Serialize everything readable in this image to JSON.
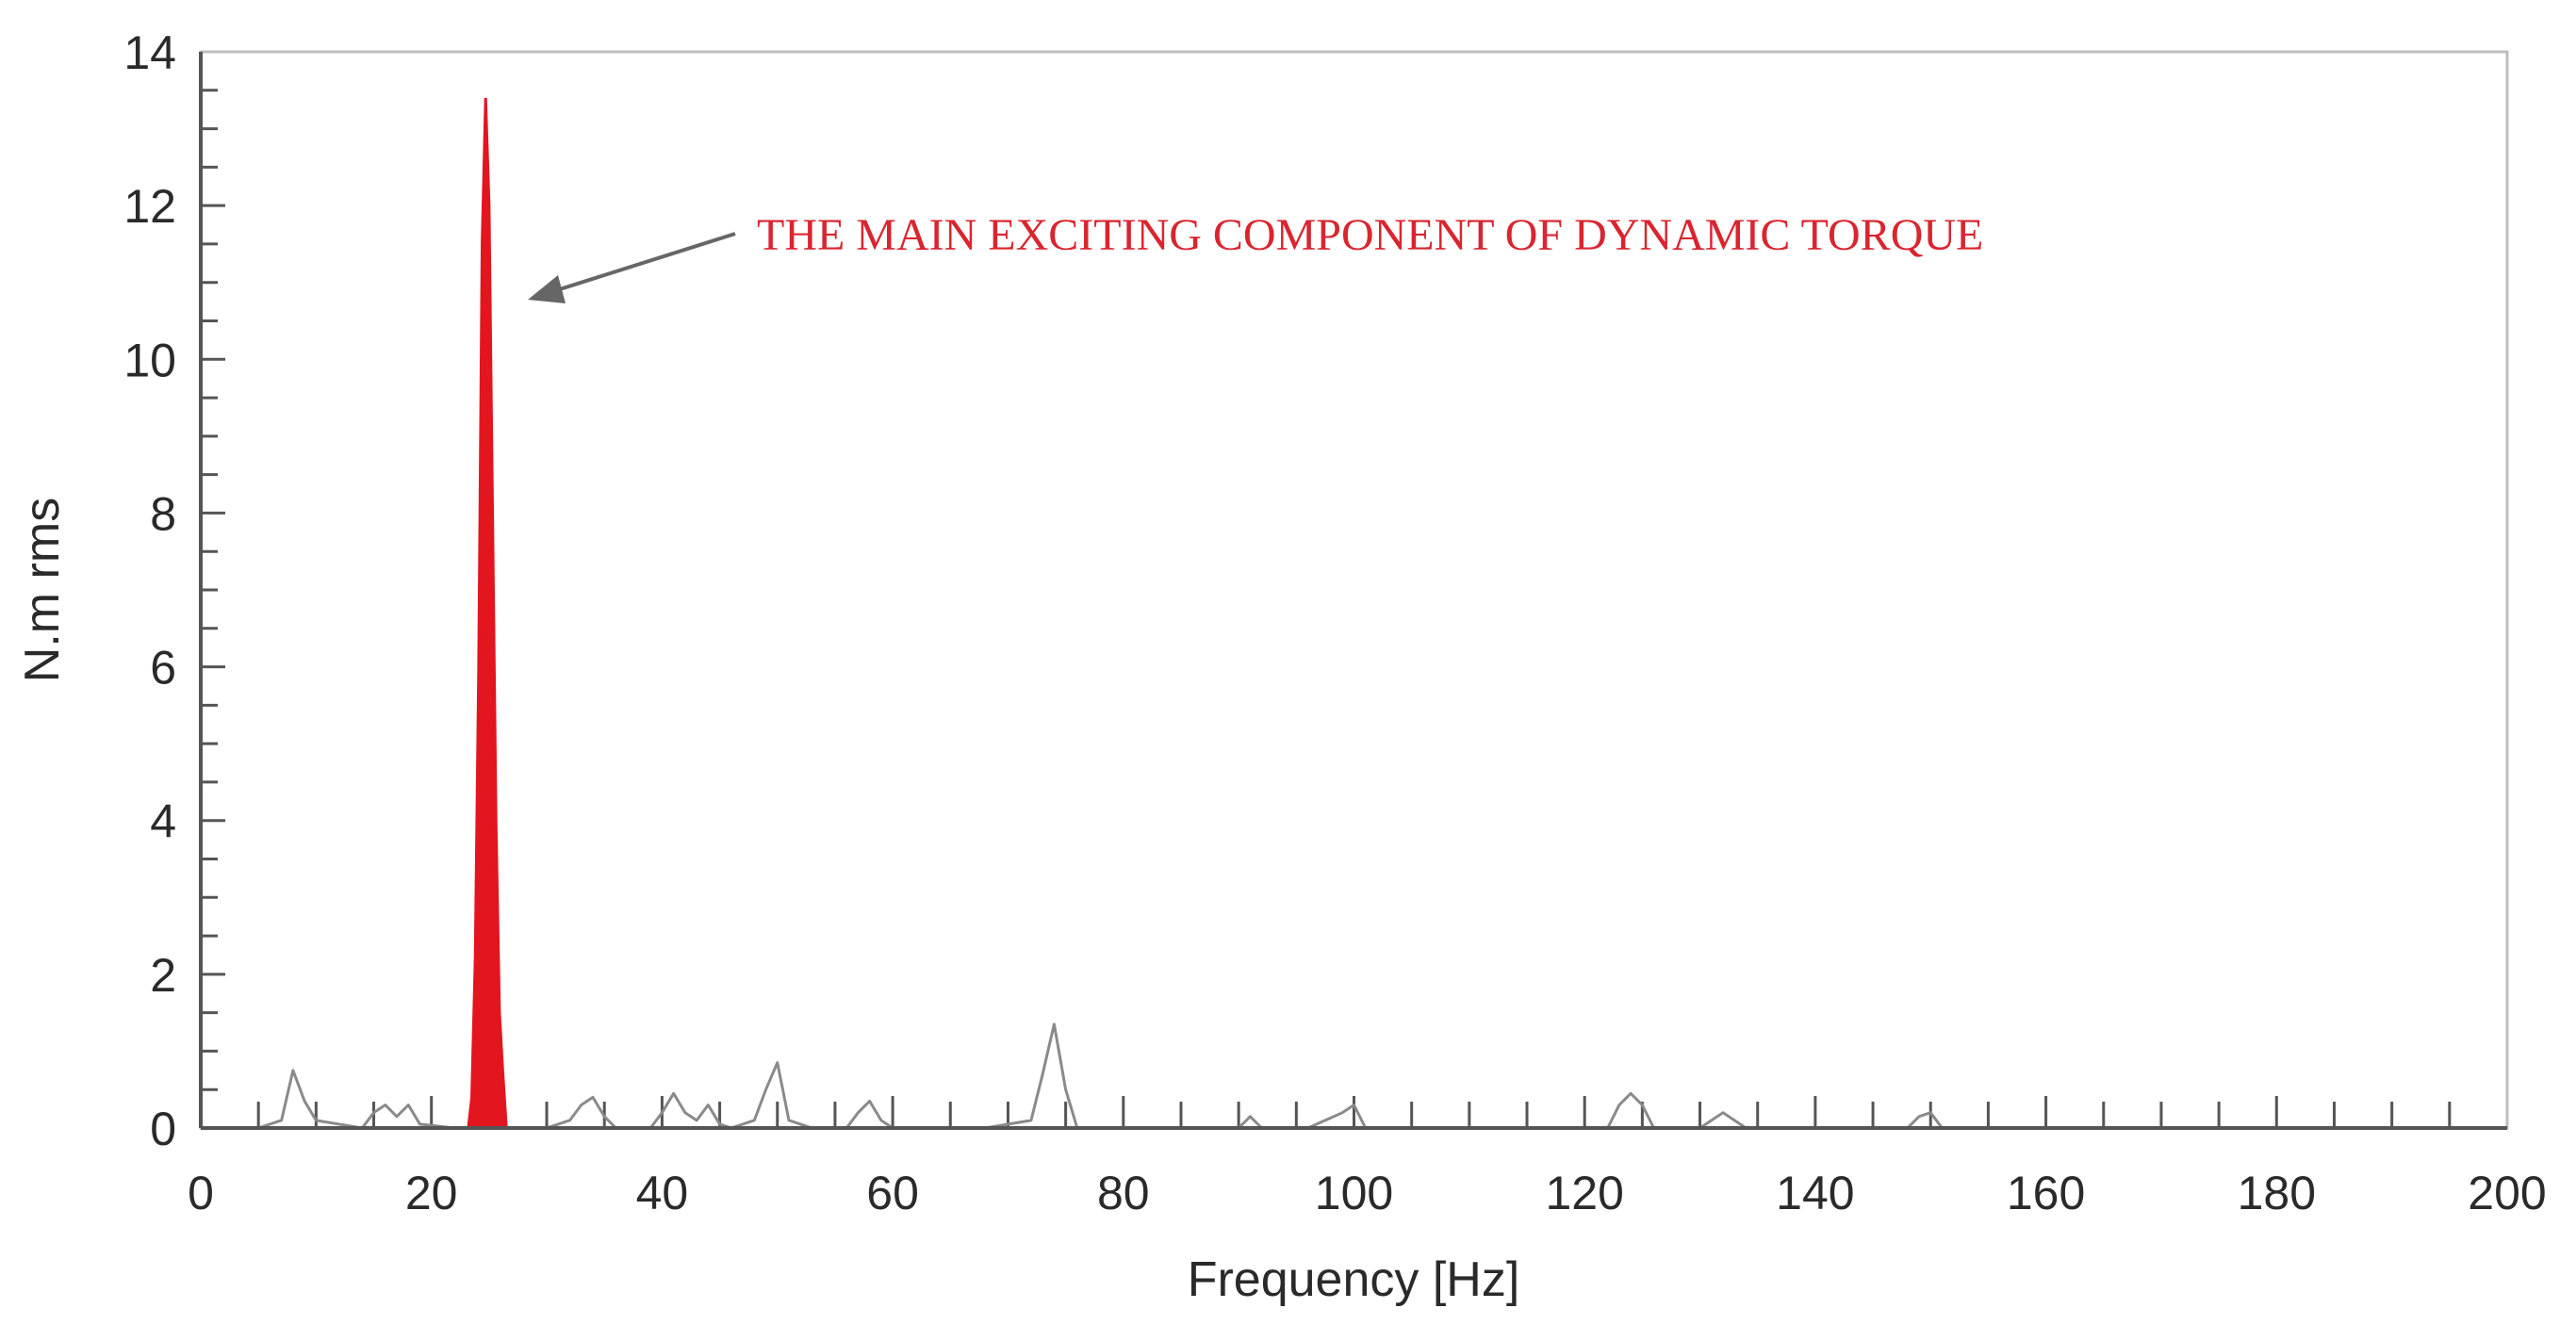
{
  "chart_data": {
    "type": "line",
    "title": "",
    "xlabel": "Frequency [Hz]",
    "ylabel": "N.m rms",
    "xlim": [
      0,
      200
    ],
    "ylim": [
      0,
      14
    ],
    "xticks": [
      "0",
      "20",
      "40",
      "60",
      "80",
      "100",
      "120",
      "140",
      "160",
      "180",
      "200"
    ],
    "yticks": [
      "0",
      "2",
      "4",
      "6",
      "8",
      "10",
      "12",
      "14"
    ],
    "grid": false,
    "annotation": "THE MAIN EXCITING COMPONENT OF DYNAMIC TORQUE",
    "colors": {
      "spectrum": "#8a8a8a",
      "highlight": "#e3151f",
      "annotation": "#d9252f",
      "axis": "#555555",
      "frame": "#bdbdbd"
    },
    "series": [
      {
        "x": [
          0,
          5,
          7,
          8,
          9,
          10,
          14,
          15,
          16,
          17,
          18,
          19,
          22,
          30,
          32,
          33,
          34,
          35,
          36,
          39,
          40,
          41,
          42,
          43,
          44,
          45,
          46,
          48,
          49,
          50,
          51,
          53,
          56,
          57,
          58,
          59,
          60,
          63,
          68,
          72,
          73,
          74,
          75,
          76,
          80,
          86,
          90,
          91,
          92,
          96,
          99,
          100,
          101,
          104,
          110,
          116,
          122,
          123,
          124,
          125,
          126,
          130,
          131,
          132,
          133,
          134,
          140,
          148,
          149,
          150,
          151,
          160,
          170,
          180,
          190,
          200
        ],
        "y": [
          0,
          0,
          0.1,
          0.75,
          0.35,
          0.1,
          0,
          0.2,
          0.3,
          0.15,
          0.3,
          0.05,
          0,
          0,
          0.1,
          0.3,
          0.4,
          0.15,
          0,
          0,
          0.2,
          0.45,
          0.2,
          0.1,
          0.3,
          0.05,
          0,
          0.1,
          0.5,
          0.85,
          0.1,
          0,
          0,
          0.2,
          0.35,
          0.1,
          0,
          0,
          0,
          0.1,
          0.7,
          1.35,
          0.5,
          0,
          0,
          0,
          0,
          0.15,
          0,
          0,
          0.2,
          0.3,
          0,
          0,
          0,
          0,
          0,
          0.3,
          0.45,
          0.3,
          0,
          0,
          0.1,
          0.2,
          0.1,
          0,
          0,
          0,
          0.15,
          0.2,
          0,
          0,
          0,
          0,
          0,
          0
        ]
      },
      {
        "x": [
          23.2,
          23.5,
          23.8,
          24.1,
          24.4,
          24.7,
          25.0,
          25.3,
          25.6,
          25.9,
          26.2,
          26.5
        ],
        "y": [
          0,
          0.4,
          2.2,
          6.0,
          11.5,
          13.4,
          12.0,
          8.0,
          4.0,
          1.5,
          0.7,
          0
        ]
      }
    ]
  }
}
